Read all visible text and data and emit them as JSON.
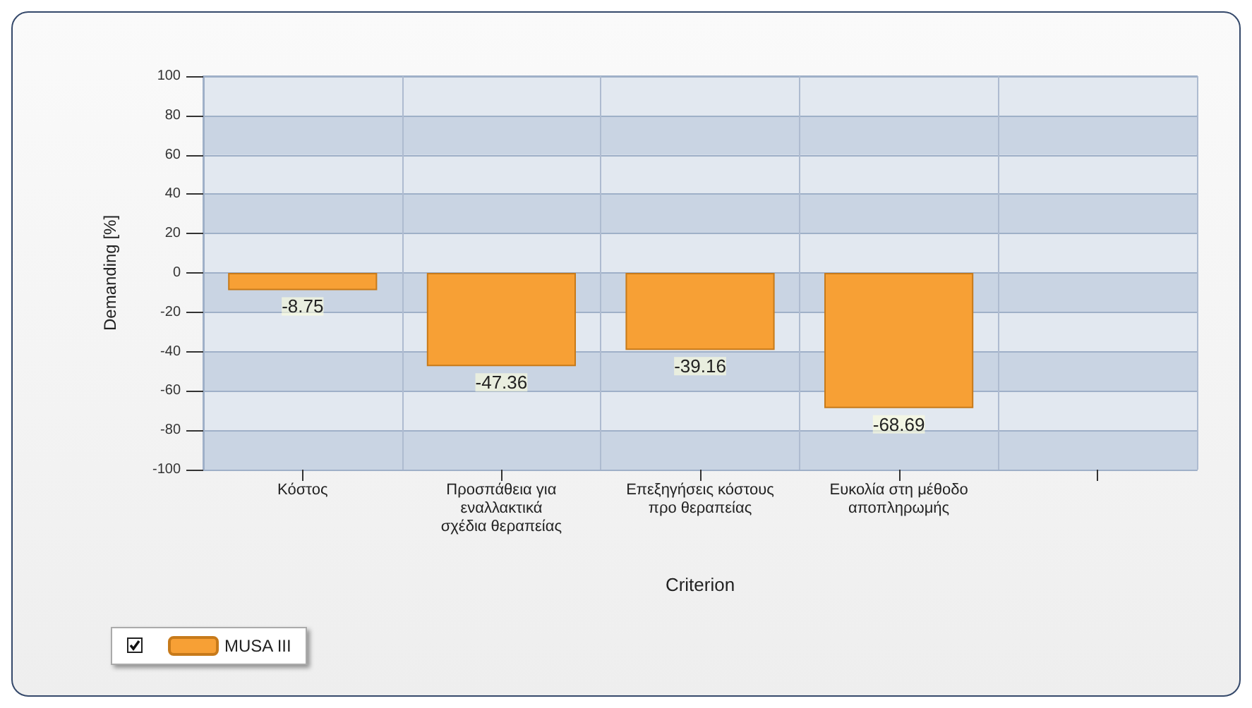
{
  "chart_data": {
    "type": "bar",
    "xlabel": "Criterion",
    "ylabel": "Demanding [%]",
    "categories": [
      "Κόστος",
      "Προσπάθεια για\nεναλλακτικά\nσχέδια θεραπείας",
      "Επεξηγήσεις κόστους\nπρο θεραπείας",
      "Ευκολία στη μέθοδο\nαποπληρωμής",
      null
    ],
    "series": [
      {
        "name": "MUSA III",
        "color": "#f7a035",
        "values": [
          -8.75,
          -47.36,
          -39.16,
          -68.69,
          null
        ]
      }
    ],
    "ylim": [
      -100,
      100
    ],
    "yticks": [
      -100,
      -80,
      -60,
      -40,
      -20,
      0,
      20,
      40,
      60,
      80,
      100
    ],
    "grid": true,
    "legend": "bottom left",
    "data_labels": true
  }
}
